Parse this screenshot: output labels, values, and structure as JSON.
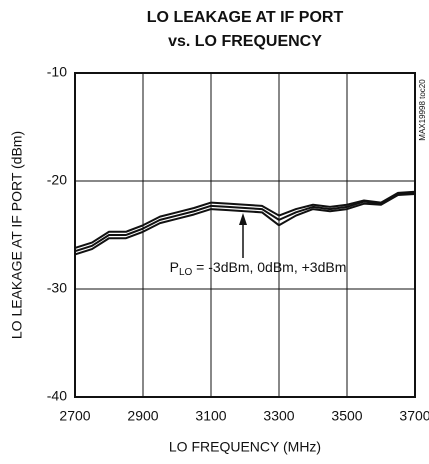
{
  "chart_data": {
    "type": "line",
    "title": [
      "LO LEAKAGE AT IF PORT",
      "vs. LO FREQUENCY"
    ],
    "x_label": "LO FREQUENCY (MHz)",
    "y_label": "LO LEAKAGE AT IF PORT (dBm)",
    "side_note": "MAX19998 toc20",
    "annotation": [
      "P",
      "LO",
      " = -3dBm, 0dBm, +3dBm"
    ],
    "x": [
      2700,
      2750,
      2800,
      2850,
      2900,
      2950,
      3000,
      3050,
      3100,
      3150,
      3200,
      3250,
      3300,
      3350,
      3400,
      3450,
      3500,
      3550,
      3600,
      3650,
      3700
    ],
    "series": [
      {
        "color": "#111111",
        "values": [
          -26.2,
          -25.7,
          -24.7,
          -24.7,
          -24.1,
          -23.3,
          -22.9,
          -22.5,
          -22.0,
          -22.1,
          -22.2,
          -22.3,
          -23.2,
          -22.6,
          -22.2,
          -22.4,
          -22.2,
          -21.8,
          -22.0,
          -21.1,
          -21.0
        ]
      },
      {
        "color": "#111111",
        "values": [
          -26.5,
          -26.0,
          -25.0,
          -25.0,
          -24.4,
          -23.6,
          -23.2,
          -22.8,
          -22.3,
          -22.4,
          -22.5,
          -22.6,
          -23.6,
          -22.9,
          -22.4,
          -22.6,
          -22.4,
          -21.9,
          -22.1,
          -21.2,
          -21.1
        ]
      },
      {
        "color": "#111111",
        "values": [
          -26.8,
          -26.3,
          -25.3,
          -25.3,
          -24.7,
          -23.9,
          -23.5,
          -23.1,
          -22.6,
          -22.7,
          -22.8,
          -22.9,
          -24.1,
          -23.2,
          -22.6,
          -22.8,
          -22.6,
          -22.1,
          -22.2,
          -21.3,
          -21.2
        ]
      }
    ],
    "xlim": [
      2700,
      3700
    ],
    "xticks": [
      2700,
      2900,
      3100,
      3300,
      3500,
      3700
    ],
    "ylim": [
      -40,
      -10
    ],
    "yticks": [
      -40,
      -30,
      -20,
      -10
    ],
    "grid": true
  }
}
